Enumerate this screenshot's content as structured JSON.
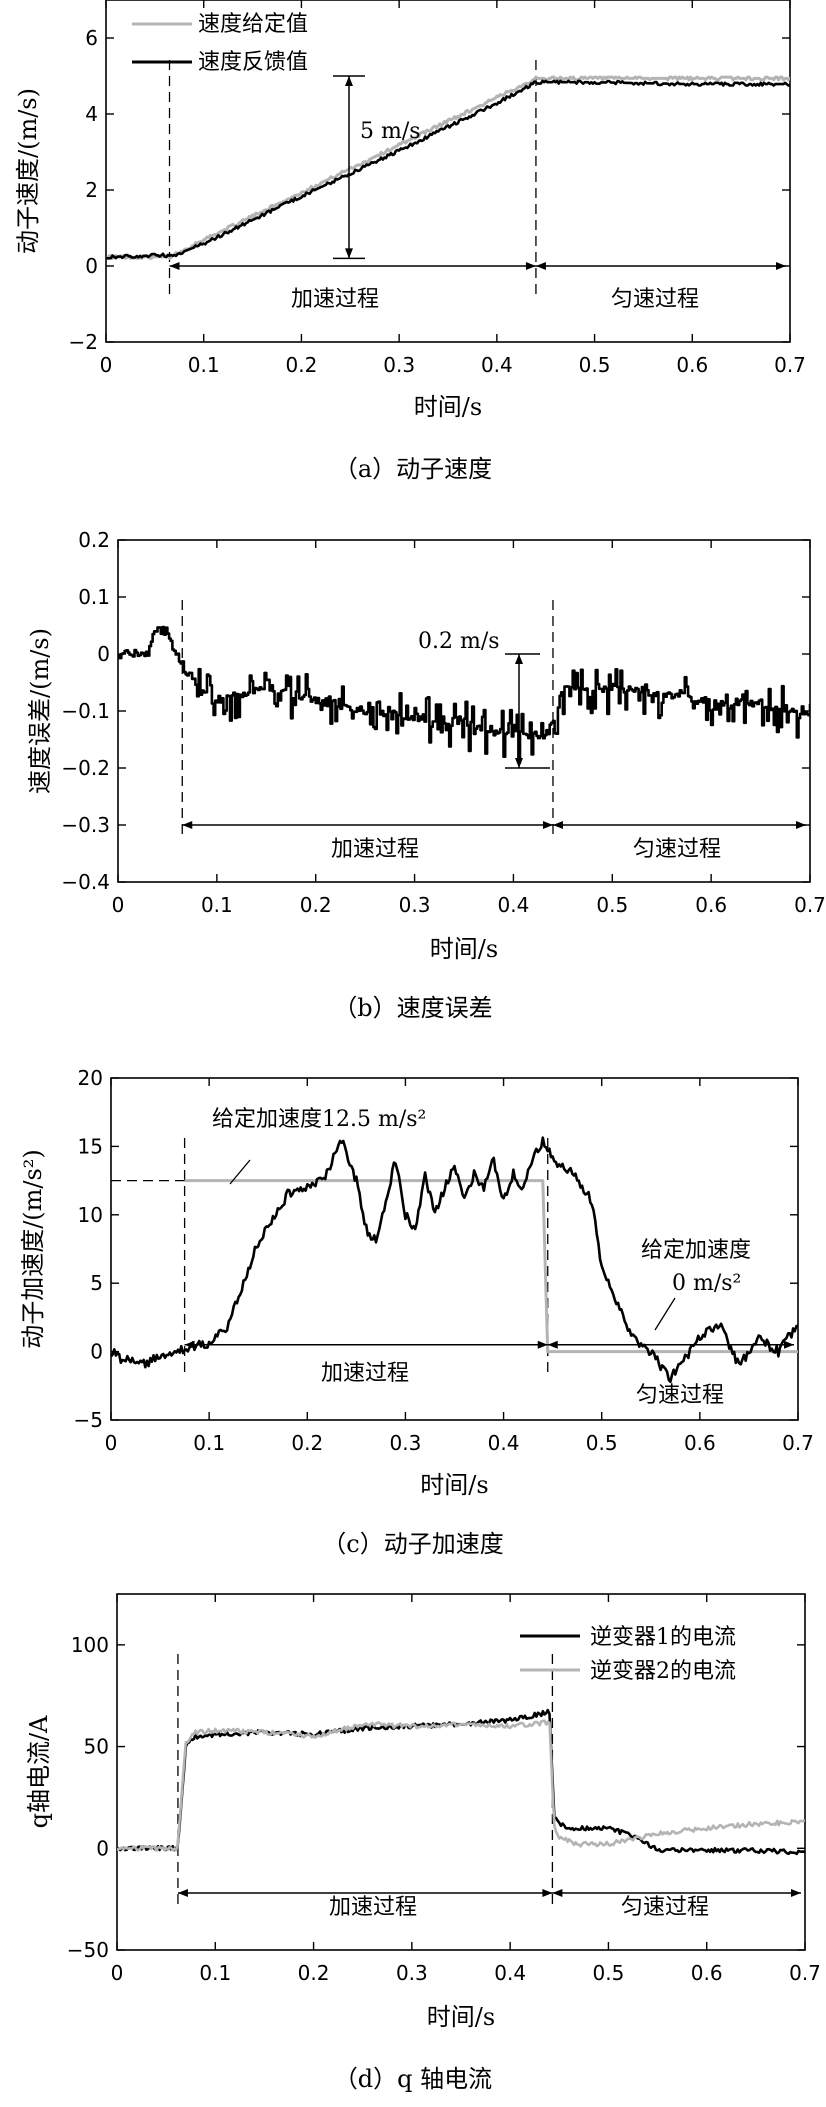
{
  "charts": [
    {
      "id": "a",
      "caption": "（a）动子速度",
      "xlabel": "时间/s",
      "ylabel": "动子速度/(m/s)",
      "xlim": [
        0,
        0.7
      ],
      "ylim": [
        -2,
        7
      ],
      "xticks": [
        "0",
        "0.1",
        "0.2",
        "0.3",
        "0.4",
        "0.5",
        "0.6",
        "0.7"
      ],
      "yticks": [
        "−2",
        "0",
        "2",
        "4",
        "6"
      ],
      "legend": [
        "速度给定值",
        "速度反馈值"
      ],
      "annotations": {
        "span": "5 m/s",
        "phase1": "加速过程",
        "phase2": "匀速过程"
      }
    },
    {
      "id": "b",
      "caption": "（b）速度误差",
      "xlabel": "时间/s",
      "ylabel": "速度误差/(m/s)",
      "xlim": [
        0,
        0.7
      ],
      "ylim": [
        -0.4,
        0.2
      ],
      "xticks": [
        "0",
        "0.1",
        "0.2",
        "0.3",
        "0.4",
        "0.5",
        "0.6",
        "0.7"
      ],
      "yticks": [
        "−0.4",
        "−0.3",
        "−0.2",
        "−0.1",
        "0",
        "0.1",
        "0.2"
      ],
      "annotations": {
        "span": "0.2 m/s",
        "phase1": "加速过程",
        "phase2": "匀速过程"
      }
    },
    {
      "id": "c",
      "caption": "（c）动子加速度",
      "xlabel": "时间/s",
      "ylabel": "动子加速度/(m/s²)",
      "xlim": [
        0,
        0.7
      ],
      "ylim": [
        -5,
        20
      ],
      "xticks": [
        "0",
        "0.1",
        "0.2",
        "0.3",
        "0.4",
        "0.5",
        "0.6",
        "0.7"
      ],
      "yticks": [
        "−5",
        "0",
        "5",
        "10",
        "15",
        "20"
      ],
      "annotations": {
        "ref1": "给定加速度12.5 m/s²",
        "ref2a": "给定加速度",
        "ref2b": "0 m/s²",
        "phase1": "加速过程",
        "phase2": "匀速过程"
      }
    },
    {
      "id": "d",
      "caption": "（d）q 轴电流",
      "xlabel": "时间/s",
      "ylabel": "q轴电流/A",
      "xlim": [
        0,
        0.7
      ],
      "ylim": [
        -50,
        125
      ],
      "xticks": [
        "0",
        "0.1",
        "0.2",
        "0.3",
        "0.4",
        "0.5",
        "0.6",
        "0.7"
      ],
      "yticks": [
        "−50",
        "0",
        "50",
        "100"
      ],
      "legend": [
        "逆变器1的电流",
        "逆变器2的电流"
      ],
      "annotations": {
        "phase1": "加速过程",
        "phase2": "匀速过程"
      }
    }
  ],
  "chart_data": [
    {
      "type": "line",
      "title": "",
      "xlabel": "时间/s",
      "ylabel": "动子速度/(m/s)",
      "xlim": [
        0,
        0.7
      ],
      "ylim": [
        -2,
        7
      ],
      "grid": false,
      "legend_position": "top-left",
      "series": [
        {
          "name": "速度给定值",
          "color": "#b4b4b4",
          "x": [
            0,
            0.06,
            0.065,
            0.1,
            0.2,
            0.3,
            0.4,
            0.44,
            0.45,
            0.5,
            0.6,
            0.7
          ],
          "y": [
            0.2,
            0.2,
            0.2,
            0.65,
            1.9,
            3.15,
            4.4,
            4.9,
            4.9,
            4.9,
            4.9,
            4.9
          ]
        },
        {
          "name": "速度反馈值",
          "color": "#000000",
          "x": [
            0,
            0.06,
            0.065,
            0.1,
            0.2,
            0.3,
            0.4,
            0.44,
            0.45,
            0.5,
            0.6,
            0.7
          ],
          "y": [
            0.2,
            0.25,
            0.2,
            0.55,
            1.8,
            3.0,
            4.25,
            4.8,
            4.8,
            4.8,
            4.75,
            4.75
          ]
        }
      ],
      "markers": {
        "dashed_x": [
          0.065,
          0.44
        ],
        "span": [
          0.2,
          5.0
        ]
      }
    },
    {
      "type": "line",
      "title": "",
      "xlabel": "时间/s",
      "ylabel": "速度误差/(m/s)",
      "xlim": [
        0,
        0.7
      ],
      "ylim": [
        -0.4,
        0.2
      ],
      "grid": false,
      "series": [
        {
          "name": "",
          "color": "#000000",
          "x": [
            0,
            0.03,
            0.035,
            0.05,
            0.055,
            0.065,
            0.08,
            0.1,
            0.15,
            0.2,
            0.25,
            0.3,
            0.35,
            0.4,
            0.43,
            0.44,
            0.45,
            0.5,
            0.55,
            0.6,
            0.65,
            0.7
          ],
          "y": [
            0,
            0,
            0.04,
            0.04,
            0.01,
            -0.02,
            -0.06,
            -0.08,
            -0.06,
            -0.08,
            -0.1,
            -0.11,
            -0.12,
            -0.14,
            -0.15,
            -0.12,
            -0.06,
            -0.06,
            -0.07,
            -0.08,
            -0.09,
            -0.1
          ]
        }
      ],
      "markers": {
        "dashed_x": [
          0.065,
          0.44
        ],
        "span": [
          -0.2,
          0
        ]
      }
    },
    {
      "type": "line",
      "title": "",
      "xlabel": "时间/s",
      "ylabel": "动子加速度/(m/s²)",
      "xlim": [
        0,
        0.7
      ],
      "ylim": [
        -5,
        20
      ],
      "grid": false,
      "series": [
        {
          "name": "给定加速度",
          "color": "#b4b4b4",
          "x": [
            0.075,
            0.44,
            0.445,
            0.7
          ],
          "y": [
            12.5,
            12.5,
            0,
            0
          ]
        },
        {
          "name": "动子加速度",
          "color": "#000000",
          "x": [
            0,
            0.01,
            0.03,
            0.06,
            0.09,
            0.1,
            0.12,
            0.15,
            0.18,
            0.2,
            0.22,
            0.235,
            0.25,
            0.26,
            0.27,
            0.28,
            0.29,
            0.3,
            0.31,
            0.32,
            0.33,
            0.34,
            0.35,
            0.36,
            0.37,
            0.38,
            0.39,
            0.4,
            0.41,
            0.42,
            0.43,
            0.44,
            0.45,
            0.47,
            0.49,
            0.5,
            0.52,
            0.53,
            0.55,
            0.57,
            0.6,
            0.62,
            0.64,
            0.66,
            0.68,
            0.7
          ],
          "y": [
            0,
            -0.5,
            -1,
            0,
            0.5,
            0.5,
            2,
            8,
            11.5,
            12,
            13,
            15.5,
            12.5,
            9,
            8,
            11,
            14,
            10,
            9,
            13,
            10,
            12,
            13.5,
            11,
            13,
            12,
            14,
            11,
            13,
            12,
            14,
            15.5,
            14,
            13,
            11,
            6,
            3,
            1,
            0,
            -2,
            1,
            2,
            -1,
            1,
            0,
            2
          ]
        }
      ],
      "markers": {
        "dashed_x": [
          0.075,
          0.445
        ]
      }
    },
    {
      "type": "line",
      "title": "",
      "xlabel": "时间/s",
      "ylabel": "q轴电流/A",
      "xlim": [
        0,
        0.7
      ],
      "ylim": [
        -50,
        125
      ],
      "grid": false,
      "legend_position": "top-right",
      "series": [
        {
          "name": "逆变器1的电流",
          "color": "#000000",
          "x": [
            0,
            0.06,
            0.062,
            0.07,
            0.08,
            0.1,
            0.15,
            0.2,
            0.25,
            0.3,
            0.35,
            0.4,
            0.44,
            0.445,
            0.45,
            0.46,
            0.5,
            0.53,
            0.55,
            0.6,
            0.65,
            0.7
          ],
          "y": [
            0,
            0,
            2,
            50,
            55,
            56,
            57,
            56,
            59,
            60,
            61,
            63,
            67,
            15,
            12,
            10,
            10,
            5,
            -1,
            -1,
            -1,
            -2
          ]
        },
        {
          "name": "逆变器2的电流",
          "color": "#b4b4b4",
          "x": [
            0,
            0.06,
            0.062,
            0.07,
            0.08,
            0.1,
            0.15,
            0.2,
            0.25,
            0.3,
            0.35,
            0.4,
            0.44,
            0.445,
            0.45,
            0.47,
            0.5,
            0.55,
            0.6,
            0.65,
            0.7
          ],
          "y": [
            0,
            0,
            2,
            52,
            57,
            58,
            57,
            55,
            61,
            60,
            61,
            60,
            62,
            10,
            5,
            2,
            2,
            7,
            10,
            12,
            13
          ]
        }
      ],
      "markers": {
        "dashed_x": [
          0.062,
          0.443
        ]
      }
    }
  ]
}
